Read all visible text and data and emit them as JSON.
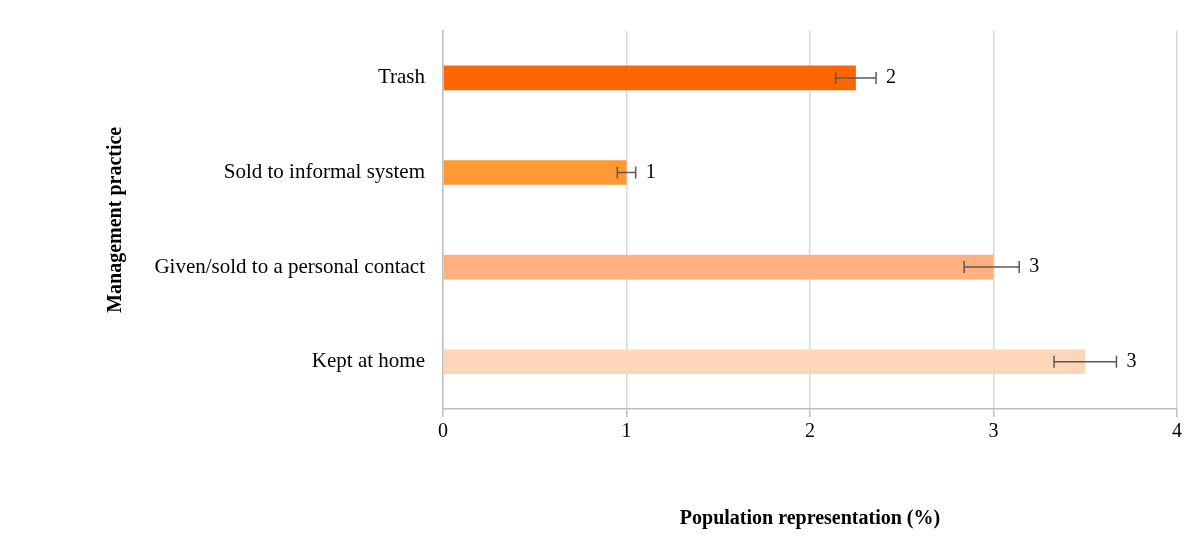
{
  "chart_data": {
    "type": "bar",
    "orientation": "horizontal",
    "xlabel": "Population representation (%)",
    "ylabel": "Management practice",
    "categories": [
      "Trash",
      "Sold to informal system",
      "Given/sold to a personal contact",
      "Kept at home"
    ],
    "values": [
      2.25,
      1.0,
      3.0,
      3.5
    ],
    "colors": [
      "#ff6600",
      "#ff9933",
      "#ffb07f",
      "#fdd5b9"
    ],
    "errors": [
      [
        2.14,
        2.36
      ],
      [
        0.95,
        1.05
      ],
      [
        2.84,
        3.14
      ],
      [
        3.33,
        3.67
      ]
    ],
    "value_labels": [
      "2",
      "1",
      "3",
      "3"
    ],
    "xlim": [
      0,
      4
    ],
    "xticks": [
      0,
      1,
      2,
      3,
      4
    ],
    "grid": "x",
    "legend": false
  }
}
